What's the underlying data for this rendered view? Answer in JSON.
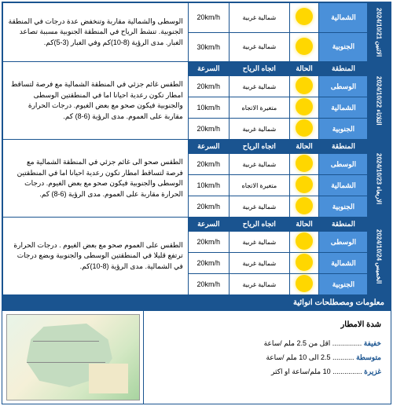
{
  "colors": {
    "primary": "#1a5490",
    "region": "#4a90d9"
  },
  "days": [
    {
      "date": "الاثنين 2024/10/21",
      "rows": [
        {
          "region": "الشمالية",
          "icon": "sun",
          "wind": "شمالية غربية",
          "speed": "20km/h"
        },
        {
          "region": "الجنوبية",
          "icon": "sun",
          "wind": "شمالية غربية",
          "speed": "30km/h"
        }
      ],
      "desc": "الوسطى والشمالية مقاربة وتنخفض عدة درجات في المنطقة الجنوبية. تنشط الرياح في المنطقة الجنوبية مسببة تصاعد الغبار. مدى الرؤية (8-10)كم وفي الغبار (3-5)كم.",
      "partial": true
    },
    {
      "date": "الثلاثاء 2024/10/22",
      "rows": [
        {
          "region": "الوسطى",
          "icon": "sun",
          "wind": "شمالية غربية",
          "speed": "20km/h"
        },
        {
          "region": "الشمالية",
          "icon": "sun",
          "wind": "متغيرة الاتجاه",
          "speed": "10km/h"
        },
        {
          "region": "الجنوبية",
          "icon": "sun",
          "wind": "شمالية غربية",
          "speed": "20km/h"
        }
      ],
      "desc": "الطقس غائم جزئي في المنطقة الشمالية مع فرصة لتساقط امطار تكون رعدية احيانا اما في المنطقتين الوسطى والجنوبية فيكون صحو مع بعض الغيوم. درجات الحرارة مقاربة على العموم. مدى الرؤية (6-8) كم."
    },
    {
      "date": "الاربعاء 2024/10/23",
      "rows": [
        {
          "region": "الوسطى",
          "icon": "sun",
          "wind": "شمالية غربية",
          "speed": "20km/h"
        },
        {
          "region": "الشمالية",
          "icon": "sun",
          "wind": "متغيرة الاتجاه",
          "speed": "10km/h"
        },
        {
          "region": "الجنوبية",
          "icon": "sun",
          "wind": "شمالية غربية",
          "speed": "20km/h"
        }
      ],
      "desc": "الطقس صحو الى غائم جزئي في المنطقة الشمالية مع فرصة لتساقط امطار تكون رعدية احيانا اما في المنطقتين الوسطى والجنوبية فيكون صحو مع بعض الغيوم. درجات الحرارة مقاربة على العموم. مدى الرؤية (6-8) كم."
    },
    {
      "date": "الخميس 2024/10/24",
      "rows": [
        {
          "region": "الوسطى",
          "icon": "sun",
          "wind": "شمالية غربية",
          "speed": "20km/h"
        },
        {
          "region": "الشمالية",
          "icon": "sun",
          "wind": "شمالية غربية",
          "speed": "20km/h"
        },
        {
          "region": "الجنوبية",
          "icon": "sun",
          "wind": "شمالية غربية",
          "speed": "20km/h"
        }
      ],
      "desc": "الطقس على العموم صحو مع بعض الغيوم . درجات الحرارة ترتفع قليلا في المنطقتين الوسطى والجنوبية وبضع درجات في الشمالية. مدى الرؤية (8-10)كم."
    }
  ],
  "headers": {
    "region": "المنطقة",
    "state": "الحالة",
    "wind_dir": "اتجاه الرياح",
    "speed": "السرعة"
  },
  "info_section": "معلومات ومصطلحات انوائية",
  "rain": {
    "title": "شدة الامطار",
    "light_lbl": "خفيفة",
    "light_val": "اقل من 2.5 ملم /ساعة",
    "mid_lbl": "متوسطة",
    "mid_val": "2.5 الى 10 ملم /ساعة",
    "heavy_lbl": "غزيرة",
    "heavy_val": "10 ملم/ساعة او اكثر"
  }
}
